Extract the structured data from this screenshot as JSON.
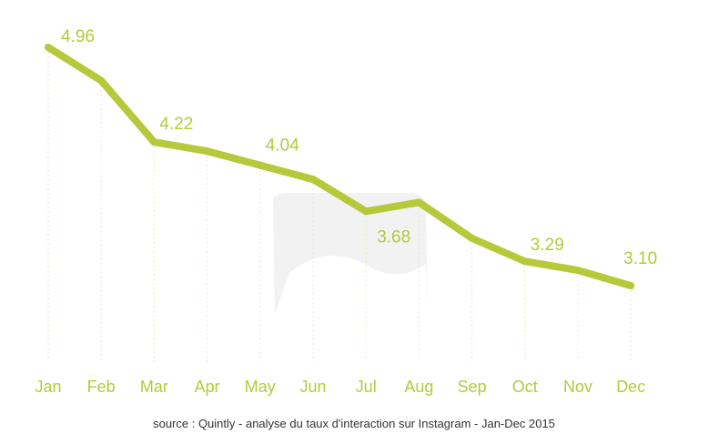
{
  "chart_data": {
    "type": "line",
    "categories": [
      "Jan",
      "Feb",
      "Mar",
      "Apr",
      "May",
      "Jun",
      "Jul",
      "Aug",
      "Sep",
      "Oct",
      "Nov",
      "Dec"
    ],
    "values": [
      4.96,
      4.7,
      4.22,
      4.15,
      4.04,
      3.93,
      3.68,
      3.75,
      3.47,
      3.29,
      3.22,
      3.1
    ],
    "data_labels": [
      {
        "index": 0,
        "text": "4.96"
      },
      {
        "index": 2,
        "text": "4.22"
      },
      {
        "index": 4,
        "text": "4.04"
      },
      {
        "index": 6,
        "text": "3.68"
      },
      {
        "index": 9,
        "text": "3.29"
      },
      {
        "index": 11,
        "text": "3.10"
      }
    ],
    "title": "",
    "xlabel": "",
    "ylabel": "",
    "ylim": [
      2.5,
      5.2
    ],
    "grid": "vertical dashed guide per month",
    "line_color": "#b6c93a",
    "label_color": "#b6c93a"
  },
  "source": "source : Quintly - analyse du taux d'interaction sur Instagram - Jan-Dec 2015"
}
